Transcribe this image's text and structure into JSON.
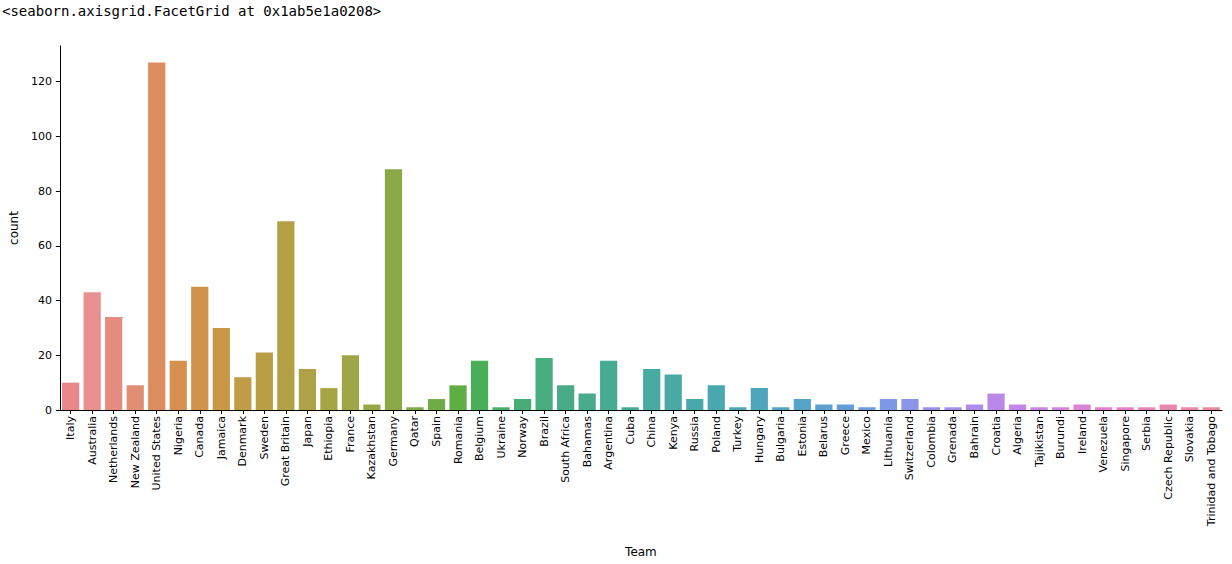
{
  "chart_data": {
    "type": "bar",
    "annotations": [
      "<seaborn.axisgrid.FacetGrid at 0x1ab5e1a0208>"
    ],
    "x_label": "Team",
    "y_label": "count",
    "categories": [
      "Italy",
      "Australia",
      "Netherlands",
      "New Zealand",
      "United States",
      "Nigeria",
      "Canada",
      "Jamaica",
      "Denmark",
      "Sweden",
      "Great Britain",
      "Japan",
      "Ethiopia",
      "France",
      "Kazakhstan",
      "Germany",
      "Qatar",
      "Spain",
      "Romania",
      "Belgium",
      "Ukraine",
      "Norway",
      "Brazil",
      "South Africa",
      "Bahamas",
      "Argentina",
      "Cuba",
      "China",
      "Kenya",
      "Russia",
      "Poland",
      "Turkey",
      "Hungary",
      "Bulgaria",
      "Estonia",
      "Belarus",
      "Greece",
      "Mexico",
      "Lithuania",
      "Switzerland",
      "Colombia",
      "Grenada",
      "Bahrain",
      "Croatia",
      "Algeria",
      "Tajikistan",
      "Burundi",
      "Ireland",
      "Venezuela",
      "Singapore",
      "Serbia",
      "Czech Republic",
      "Slovakia",
      "Trinidad and Tobago"
    ],
    "values": [
      10,
      43,
      34,
      9,
      127,
      18,
      45,
      30,
      12,
      21,
      69,
      15,
      8,
      20,
      2,
      88,
      1,
      4,
      9,
      18,
      1,
      4,
      19,
      9,
      6,
      18,
      1,
      15,
      13,
      4,
      9,
      1,
      8,
      1,
      4,
      2,
      2,
      1,
      4,
      4,
      1,
      1,
      2,
      6,
      2,
      1,
      1,
      2,
      1,
      1,
      1,
      2,
      1,
      1
    ],
    "colors": [
      "#e8888a",
      "#e8908f",
      "#e58c80",
      "#e28e75",
      "#dc8c5e",
      "#d6904f",
      "#cf9449",
      "#c89847",
      "#c19c46",
      "#ba9e45",
      "#b3a045",
      "#ada245",
      "#a6a445",
      "#9ea645",
      "#96a845",
      "#8aa845",
      "#7eaa45",
      "#70ac45",
      "#5eae46",
      "#48ae58",
      "#47ae68",
      "#47ad74",
      "#47ad7e",
      "#47ac86",
      "#47ab8d",
      "#47ab94",
      "#47aa9a",
      "#48aaa0",
      "#48a9a5",
      "#49a9aa",
      "#4aa8b0",
      "#4ba7b5",
      "#4da6bb",
      "#50a5c2",
      "#54a3c9",
      "#5aa1d0",
      "#629fd8",
      "#6e9ce0",
      "#7c98e6",
      "#8a95e8",
      "#9791e8",
      "#a38ee8",
      "#ae8be8",
      "#b988e8",
      "#c385e7",
      "#cc83e4",
      "#d582de",
      "#dc82d6",
      "#e082cd",
      "#e383c4",
      "#e585bb",
      "#e686b1",
      "#e788a7",
      "#e8899c"
    ],
    "ylim": [
      0,
      133
    ],
    "yticks": [
      0,
      20,
      40,
      60,
      80,
      100,
      120
    ],
    "grid": false
  }
}
